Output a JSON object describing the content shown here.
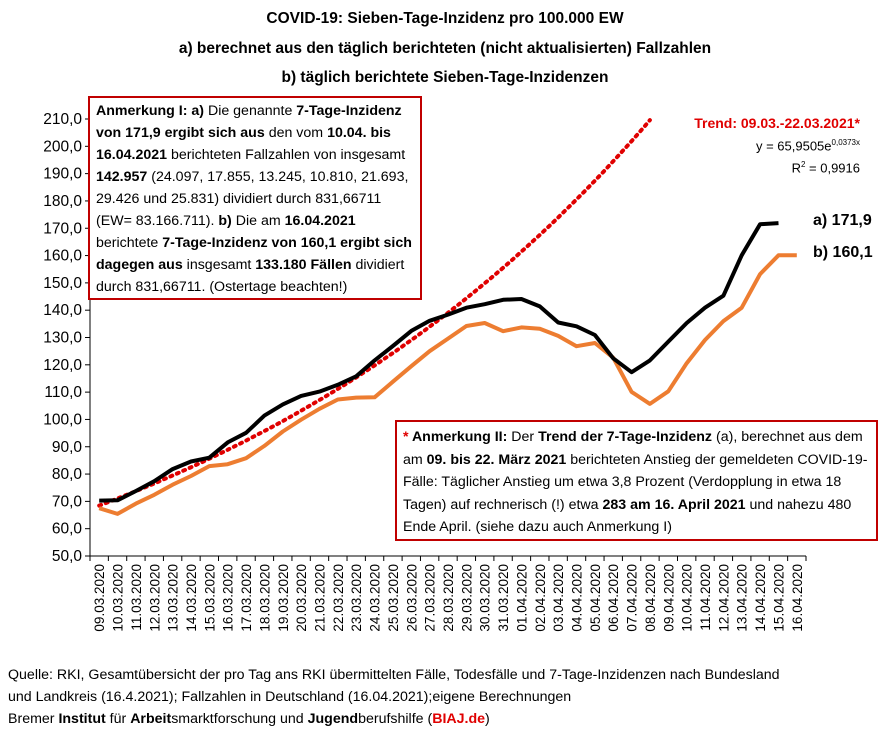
{
  "titles": {
    "line1": "COVID-19: Sieben-Tage-Inzidenz pro 100.000 EW",
    "line2": "a) berechnet aus den täglich berichteten (nicht aktualisierten) Fallzahlen",
    "line3": "b) täglich berichtete Sieben-Tage-Inzidenzen"
  },
  "note1": {
    "p1": "Anmerkung I:  a)",
    "p2": " Die genannte ",
    "p3": "7-Tage-Inzidenz von 171,9 ergibt sich aus",
    "p4": " den vom ",
    "p5": "10.04. bis 16.04.2021",
    "p6": " berichteten Fallzahlen von insgesamt ",
    "p7": "142.957",
    "p8": " (24.097, 17.855, 13.245, 10.810, 21.693, 29.426 und 25.831) dividiert durch 831,66711 (EW= 83.166.711). ",
    "p9": "b)",
    "p10": " Die am ",
    "p11": "16.04.2021",
    "p12": " berichtete ",
    "p13": "7-Tage-Inzidenz von 160,1 ergibt sich dagegen aus",
    "p14": " insgesamt ",
    "p15": "133.180 Fällen",
    "p16": " dividiert durch 831,66711. (Ostertage beachten!)"
  },
  "note2": {
    "p1": "* ",
    "p2": "Anmerkung II:",
    "p3": " Der ",
    "p4": "Trend der 7-Tage-Inzidenz",
    "p5": " (a), berechnet aus dem am ",
    "p6": "09. bis 22. März 2021",
    "p7": " berichteten Anstieg der gemeldeten COVID-19-Fälle: Täglicher Anstieg um etwa 3,8 Prozent (Verdopplung in etwa 18 Tagen) auf rechnerisch (!) etwa ",
    "p8": "283 am 16. April 2021",
    "p9": " und nahezu 480 Ende April. (siehe dazu auch Anmerkung I)"
  },
  "trend": {
    "label": "Trend: 09.03.-22.03.2021*",
    "eq_prefix": "y = 65,9505e",
    "eq_exp": "0,0373x",
    "r2_prefix": "R",
    "r2_sup": "2",
    "r2_suffix": " = 0,9916"
  },
  "end_labels": {
    "a": "a) 171,9",
    "b": "b) 160,1"
  },
  "source": {
    "line1": "Quelle: RKI, Gesamtübersicht der pro Tag ans RKI übermittelten Fälle, Todesfälle und 7-Tage-Inzidenzen nach Bundesland",
    "line2": "und Landkreis (16.4.2021); Fallzahlen in Deutschland (16.04.2021);eigene Berechnungen",
    "l3a": "Bremer ",
    "l3b": "Institut",
    "l3c": " für ",
    "l3d": "Arbeit",
    "l3e": "smarktforschung und ",
    "l3f": "Jugend",
    "l3g": "berufshilfe (",
    "l3h": "BIAJ.de",
    "l3i": ")"
  },
  "colors": {
    "series_a": "#000000",
    "series_b": "#ed7d31",
    "trend": "#e00000",
    "grid": "#d9d9d9",
    "annotation_border": "#c00000"
  },
  "chart_data": {
    "type": "line",
    "x": [
      "09.03.2020",
      "10.03.2020",
      "11.03.2020",
      "12.03.2020",
      "13.03.2020",
      "14.03.2020",
      "15.03.2020",
      "16.03.2020",
      "17.03.2020",
      "18.03.2020",
      "19.03.2020",
      "20.03.2020",
      "21.03.2020",
      "22.03.2020",
      "23.03.2020",
      "24.03.2020",
      "25.03.2020",
      "26.03.2020",
      "27.03.2020",
      "28.03.2020",
      "29.03.2020",
      "30.03.2020",
      "31.03.2020",
      "01.04.2020",
      "02.04.2020",
      "03.04.2020",
      "04.04.2020",
      "05.04.2020",
      "06.04.2020",
      "07.04.2020",
      "08.04.2020",
      "09.04.2020",
      "10.04.2020",
      "11.04.2020",
      "12.04.2020",
      "13.04.2020",
      "14.04.2020",
      "15.04.2020",
      "16.04.2020"
    ],
    "series": [
      {
        "name": "a)",
        "values": [
          70.3,
          70.4,
          73.8,
          77.4,
          81.8,
          84.6,
          86.0,
          91.6,
          95.1,
          101.4,
          105.5,
          108.6,
          110.2,
          112.7,
          115.8,
          121.6,
          126.9,
          132.4,
          136.1,
          138.4,
          140.9,
          142.2,
          143.8,
          144.1,
          141.4,
          135.5,
          134.1,
          130.9,
          122.4,
          117.3,
          121.6,
          128.5,
          135.3,
          140.9,
          145.3,
          160.1,
          171.5,
          171.9,
          null
        ],
        "trend_fit": {
          "formula": "y = 65,9505e^(0,0373x)",
          "a": 65.9505,
          "b": 0.0373,
          "x_start": 1,
          "x_end": 32
        }
      },
      {
        "name": "b)",
        "values": [
          67.5,
          65.4,
          69.2,
          72.4,
          76.1,
          79.3,
          82.9,
          83.6,
          85.8,
          90.3,
          95.6,
          99.9,
          103.9,
          107.3,
          108.0,
          108.1,
          113.8,
          119.5,
          125.0,
          129.6,
          134.2,
          135.3,
          132.3,
          133.7,
          133.2,
          130.6,
          126.8,
          128.0,
          122.6,
          110.1,
          105.7,
          110.3,
          120.6,
          129.1,
          136.0,
          140.9,
          153.2,
          160.1,
          160.1
        ]
      }
    ],
    "ylim": [
      50,
      210
    ],
    "yticks": [
      "50,0",
      "60,0",
      "70,0",
      "80,0",
      "90,0",
      "100,0",
      "110,0",
      "120,0",
      "130,0",
      "140,0",
      "150,0",
      "160,0",
      "170,0",
      "180,0",
      "190,0",
      "200,0",
      "210,0"
    ],
    "xlabel": "",
    "ylabel": "",
    "grid": false,
    "legend": "none"
  }
}
